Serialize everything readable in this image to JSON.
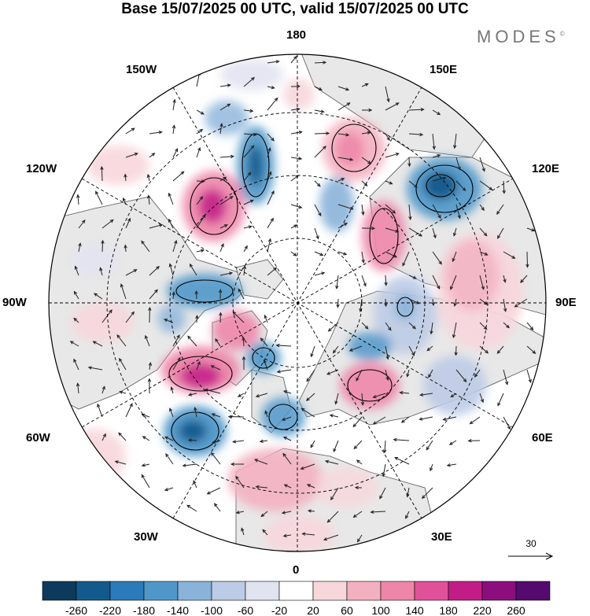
{
  "header": {
    "title": "Base 15/07/2025 00 UTC, valid 15/07/2025 00 UTC",
    "brand": "MODES",
    "brand_mark": "©"
  },
  "map": {
    "projection": "north-polar-stereographic",
    "center_longitude": 0,
    "longitude_labels": {
      "top": "180",
      "bottom": "0",
      "left": "90W",
      "right": "90E",
      "upper_left_1": "150W",
      "upper_left_2": "120W",
      "lower_left_1": "60W",
      "lower_left_2": "30W",
      "upper_right_1": "150E",
      "upper_right_2": "120E",
      "lower_right_1": "60E",
      "lower_right_2": "30E"
    },
    "colors": {
      "land": "#e8e8e8",
      "ocean": "#ffffff",
      "coastline": "#555555",
      "graticule": "#000000"
    }
  },
  "reference_vector": {
    "label": "30"
  },
  "colorbar": {
    "colors": [
      "#0d3a5c",
      "#135a8c",
      "#2b7bba",
      "#4f97c9",
      "#89b3d9",
      "#bccbe6",
      "#e2e3f1",
      "#ffffff",
      "#f7d6dc",
      "#f3b0c0",
      "#ee86aa",
      "#e0519a",
      "#c21d87",
      "#8c0e7e",
      "#540a6e"
    ],
    "tick_labels": [
      "-260",
      "-220",
      "-180",
      "-140",
      "-100",
      "-60",
      "-20",
      "20",
      "60",
      "100",
      "140",
      "180",
      "220",
      "260"
    ]
  }
}
